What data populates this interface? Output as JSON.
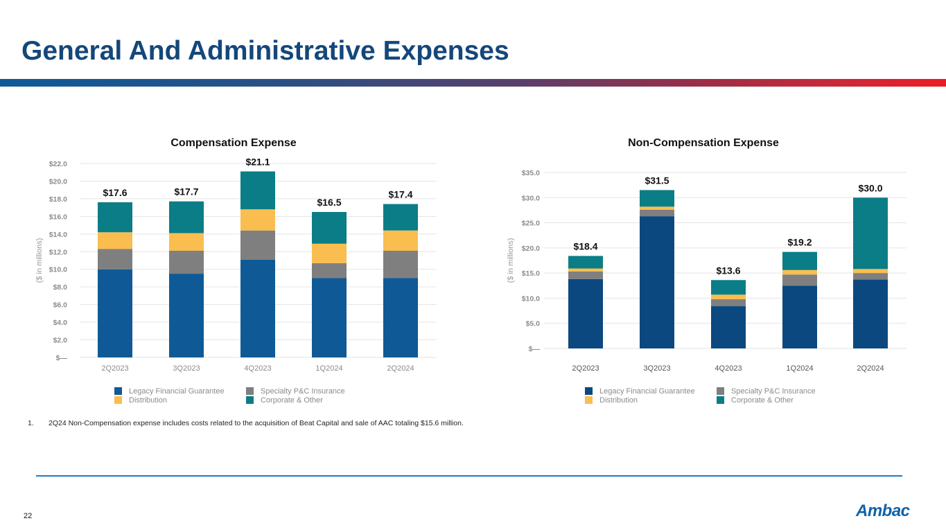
{
  "page": {
    "title": "General And Administrative Expenses",
    "page_number": "22",
    "logo_text": "Ambac",
    "footnote_number": "1.",
    "footnote_text": "2Q24 Non-Compensation expense includes costs related to the acquisition of Beat Capital and sale of AAC totaling $15.6 million."
  },
  "colors": {
    "legacy_financial_guarantee": "#0f5a96",
    "specialty_pc_insurance": "#7f7f7f",
    "distribution": "#f9be4f",
    "corporate_other": "#0b7d86",
    "legacy_financial_guarantee_noncomp": "#0b487f"
  },
  "legend": [
    {
      "label": "Legacy Financial Guarantee",
      "key": "legacy_financial_guarantee"
    },
    {
      "label": "Specialty P&C Insurance",
      "key": "specialty_pc_insurance"
    },
    {
      "label": "Distribution",
      "key": "distribution"
    },
    {
      "label": "Corporate & Other",
      "key": "corporate_other"
    }
  ],
  "chart_data": [
    {
      "type": "bar",
      "stacked": true,
      "title": "Compensation Expense",
      "xlabel": "",
      "ylabel": "($ in millions)",
      "ylim": [
        0,
        22
      ],
      "ytick_step": 2,
      "ytick_labels": [
        "$—",
        "$2.0",
        "$4.0",
        "$6.0",
        "$8.0",
        "$10.0",
        "$12.0",
        "$14.0",
        "$16.0",
        "$18.0",
        "$20.0",
        "$22.0"
      ],
      "grid": true,
      "legend_position": "bottom",
      "categories": [
        "2Q2023",
        "3Q2023",
        "4Q2023",
        "1Q2024",
        "2Q2024"
      ],
      "series": [
        {
          "name": "Legacy Financial Guarantee",
          "values": [
            10.0,
            9.5,
            11.1,
            9.0,
            9.0
          ]
        },
        {
          "name": "Specialty P&C Insurance",
          "values": [
            2.3,
            2.6,
            3.3,
            1.7,
            3.1
          ]
        },
        {
          "name": "Distribution",
          "values": [
            1.9,
            2.0,
            2.4,
            2.2,
            2.3
          ]
        },
        {
          "name": "Corporate & Other",
          "values": [
            3.4,
            3.6,
            4.3,
            3.6,
            3.0
          ]
        }
      ],
      "totals": [
        17.6,
        17.7,
        21.1,
        16.5,
        17.4
      ],
      "total_labels": [
        "$17.6",
        "$17.7",
        "$21.1",
        "$16.5",
        "$17.4"
      ]
    },
    {
      "type": "bar",
      "stacked": true,
      "title": "Non-Compensation Expense",
      "xlabel": "",
      "ylabel": "($ in millions)",
      "ylim": [
        0,
        35
      ],
      "ytick_step": 5,
      "ytick_labels": [
        "$—",
        "$5.0",
        "$10.0",
        "$15.0",
        "$20.0",
        "$25.0",
        "$30.0",
        "$35.0"
      ],
      "grid": true,
      "legend_position": "bottom",
      "categories": [
        "2Q2023",
        "3Q2023",
        "4Q2023",
        "1Q2024",
        "2Q2024"
      ],
      "series": [
        {
          "name": "Legacy Financial Guarantee",
          "values": [
            13.8,
            26.3,
            8.4,
            12.5,
            13.7
          ]
        },
        {
          "name": "Specialty P&C Insurance",
          "values": [
            1.5,
            1.3,
            1.4,
            2.2,
            1.3
          ]
        },
        {
          "name": "Distribution",
          "values": [
            0.6,
            0.6,
            0.9,
            0.9,
            0.8
          ]
        },
        {
          "name": "Corporate & Other",
          "values": [
            2.5,
            3.3,
            2.9,
            3.6,
            14.2
          ]
        }
      ],
      "totals": [
        18.4,
        31.5,
        13.6,
        19.2,
        30.0
      ],
      "total_labels": [
        "$18.4",
        "$31.5",
        "$13.6",
        "$19.2",
        "$30.0"
      ]
    }
  ]
}
